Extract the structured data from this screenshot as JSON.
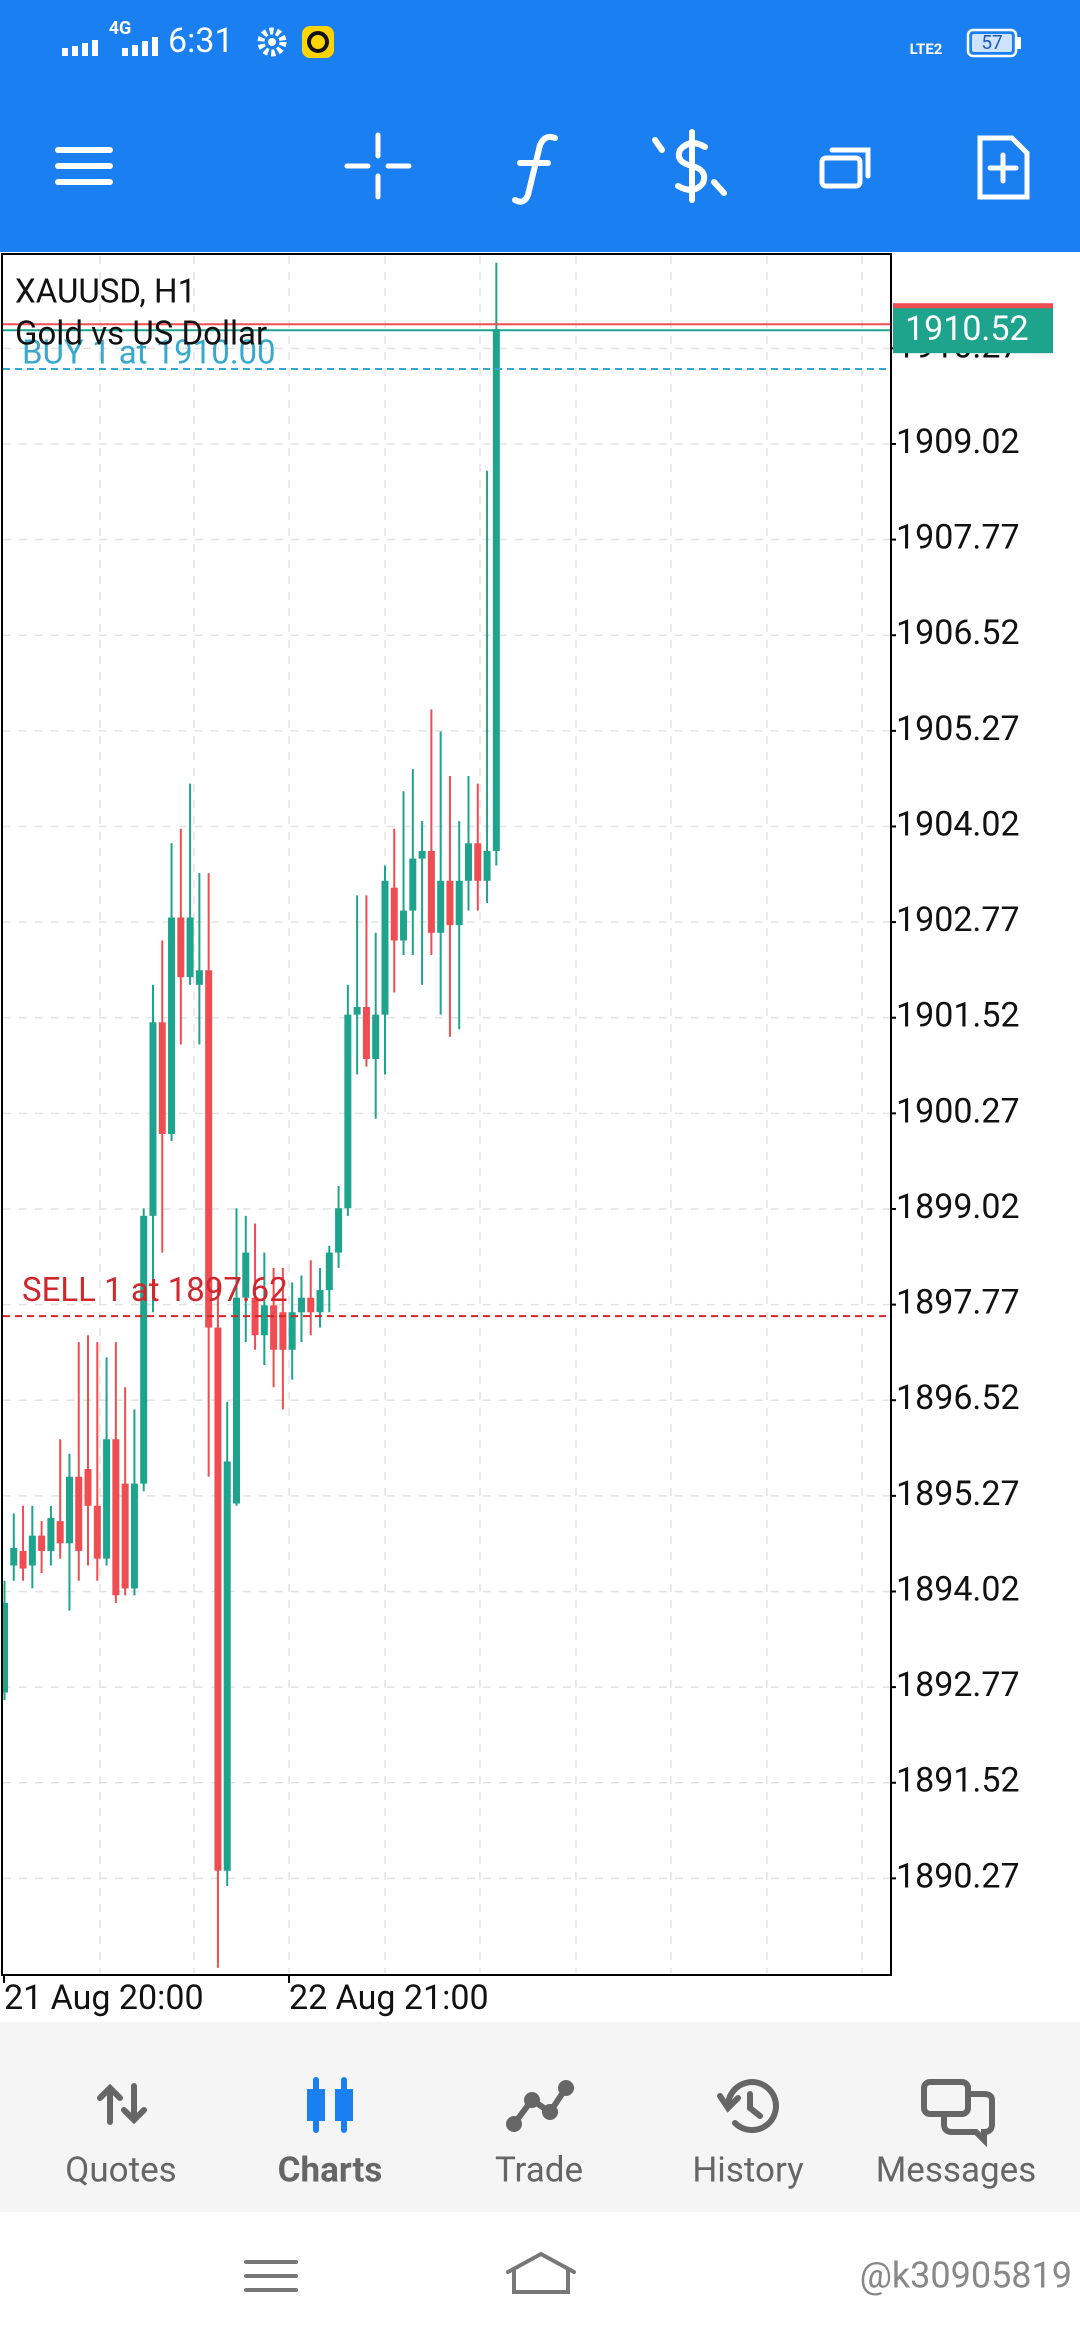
{
  "status_bar": {
    "network": "4G",
    "time": "6:31",
    "lte": "LTE2",
    "battery": "57"
  },
  "chart_data": {
    "type": "candlestick",
    "symbol": "XAUUSD, H1",
    "description": "Gold vs US Dollar",
    "up_color": "#1ea48c",
    "down_color": "#ef4d51",
    "ylim": [
      1889.02,
      1911.49
    ],
    "yticks": [
      1910.27,
      1909.02,
      1907.77,
      1906.52,
      1905.27,
      1904.02,
      1902.77,
      1901.52,
      1900.27,
      1899.02,
      1897.77,
      1896.52,
      1895.27,
      1894.02,
      1892.77,
      1891.52,
      1890.27
    ],
    "grid": true,
    "current_price": 1910.52,
    "buy_line": {
      "label": "BUY 1 at 1910.00",
      "price": 1910.0,
      "color": "#37a9cf"
    },
    "sell_line": {
      "label": "SELL 1 at 1897.62",
      "price": 1897.62,
      "color": "#d0262c"
    },
    "x_labels": [
      "21 Aug 20:00",
      "22 Aug 21:00"
    ],
    "candles": [
      [
        1892.7,
        1894.16,
        1892.6,
        1893.87
      ],
      [
        1894.36,
        1895.04,
        1894.16,
        1894.59
      ],
      [
        1894.55,
        1895.14,
        1894.16,
        1894.32
      ],
      [
        1894.36,
        1895.14,
        1894.06,
        1894.75
      ],
      [
        1894.75,
        1894.94,
        1894.26,
        1894.55
      ],
      [
        1894.55,
        1895.14,
        1894.36,
        1894.98
      ],
      [
        1894.94,
        1896.01,
        1894.45,
        1894.65
      ],
      [
        1894.65,
        1895.82,
        1893.77,
        1895.52
      ],
      [
        1895.52,
        1897.28,
        1894.16,
        1894.55
      ],
      [
        1895.62,
        1897.37,
        1894.36,
        1895.14
      ],
      [
        1895.14,
        1897.28,
        1894.16,
        1894.45
      ],
      [
        1894.45,
        1897.08,
        1894.36,
        1896.01
      ],
      [
        1896.01,
        1897.28,
        1893.87,
        1893.97
      ],
      [
        1895.43,
        1896.69,
        1893.97,
        1894.06
      ],
      [
        1894.06,
        1896.4,
        1893.97,
        1895.43
      ],
      [
        1895.43,
        1899.03,
        1895.33,
        1898.93
      ],
      [
        1898.93,
        1901.95,
        1897.67,
        1901.46
      ],
      [
        1901.46,
        1902.53,
        1898.45,
        1900.0
      ],
      [
        1900.0,
        1903.8,
        1899.91,
        1902.83
      ],
      [
        1902.83,
        1903.99,
        1901.17,
        1902.05
      ],
      [
        1902.05,
        1904.58,
        1901.95,
        1902.83
      ],
      [
        1901.95,
        1903.41,
        1901.17,
        1902.14
      ],
      [
        1902.14,
        1903.41,
        1895.52,
        1897.47
      ],
      [
        1897.47,
        1898.06,
        1889.1,
        1890.37
      ],
      [
        1890.37,
        1896.5,
        1890.17,
        1895.72
      ],
      [
        1895.17,
        1899.03,
        1895.14,
        1897.86
      ],
      [
        1897.86,
        1898.93,
        1897.28,
        1898.45
      ],
      [
        1897.86,
        1898.83,
        1897.18,
        1897.37
      ],
      [
        1897.37,
        1898.45,
        1896.98,
        1897.76
      ],
      [
        1897.76,
        1898.25,
        1896.69,
        1897.18
      ],
      [
        1897.67,
        1898.25,
        1896.4,
        1897.18
      ],
      [
        1897.18,
        1898.06,
        1896.79,
        1897.67
      ],
      [
        1897.67,
        1898.15,
        1897.28,
        1897.86
      ],
      [
        1897.86,
        1898.35,
        1897.37,
        1897.67
      ],
      [
        1897.67,
        1898.25,
        1897.47,
        1897.96
      ],
      [
        1897.96,
        1898.54,
        1897.67,
        1898.45
      ],
      [
        1898.45,
        1899.32,
        1898.25,
        1899.03
      ],
      [
        1899.03,
        1901.95,
        1898.93,
        1901.56
      ],
      [
        1901.56,
        1903.12,
        1900.78,
        1901.66
      ],
      [
        1901.66,
        1903.12,
        1900.88,
        1900.98
      ],
      [
        1900.98,
        1902.63,
        1900.2,
        1901.56
      ],
      [
        1901.56,
        1903.51,
        1900.78,
        1903.31
      ],
      [
        1903.22,
        1903.99,
        1901.85,
        1902.53
      ],
      [
        1902.53,
        1904.48,
        1902.34,
        1902.92
      ],
      [
        1902.92,
        1904.77,
        1902.34,
        1903.6
      ],
      [
        1903.6,
        1904.09,
        1901.95,
        1903.7
      ],
      [
        1903.7,
        1905.55,
        1902.34,
        1902.63
      ],
      [
        1902.63,
        1905.26,
        1901.56,
        1903.31
      ],
      [
        1903.31,
        1904.68,
        1901.27,
        1902.73
      ],
      [
        1902.73,
        1904.09,
        1901.37,
        1903.31
      ],
      [
        1903.31,
        1904.68,
        1902.92,
        1903.8
      ],
      [
        1903.8,
        1904.58,
        1902.92,
        1903.31
      ],
      [
        1903.31,
        1908.67,
        1903.02,
        1903.7
      ],
      [
        1903.7,
        1911.39,
        1903.51,
        1910.52
      ]
    ]
  },
  "tabs": [
    {
      "label": "Quotes",
      "active": false
    },
    {
      "label": "Charts",
      "active": true
    },
    {
      "label": "Trade",
      "active": false
    },
    {
      "label": "History",
      "active": false
    },
    {
      "label": "Messages",
      "active": false
    }
  ],
  "watermark": "@k30905819"
}
